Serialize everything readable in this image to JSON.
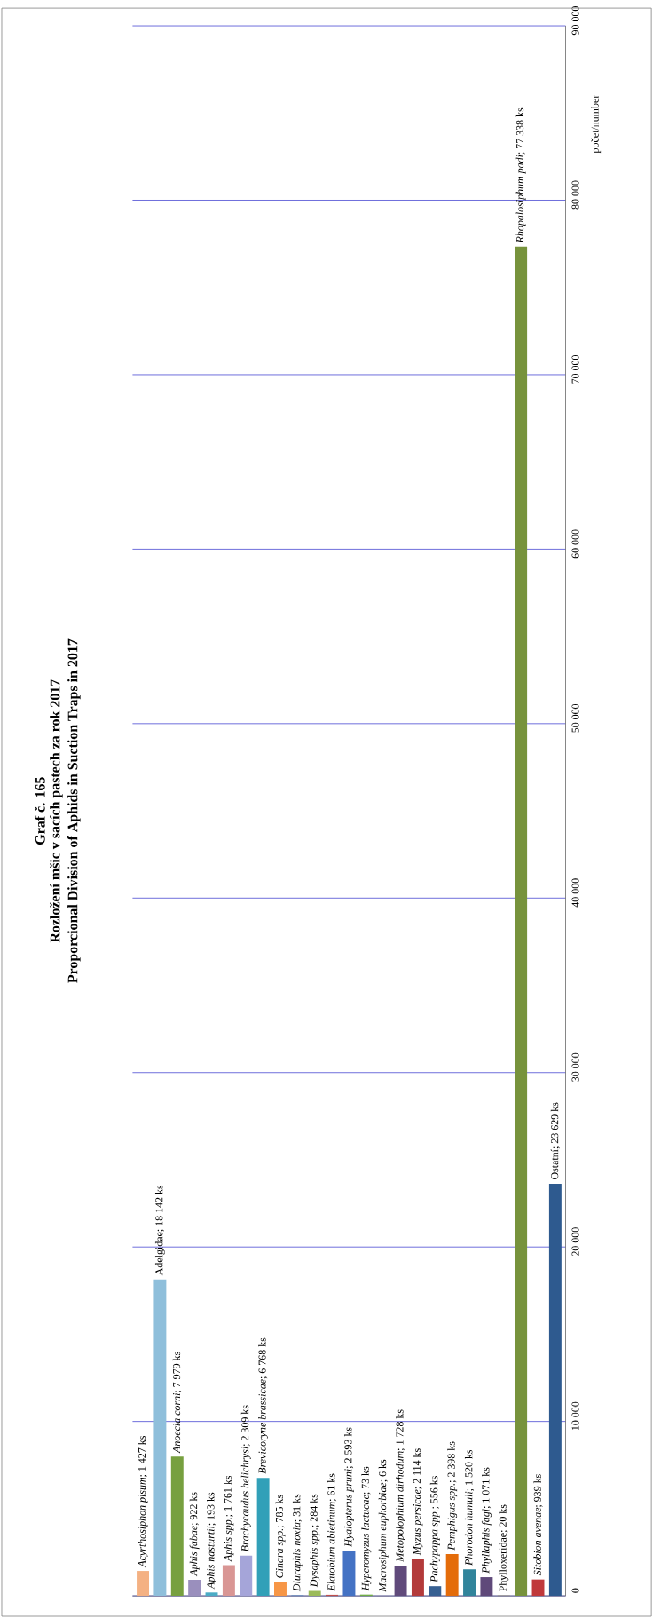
{
  "chart_data": {
    "type": "bar",
    "title": "Graf č. 165",
    "subtitle": "Rozložení mšic v sacích pastech za rok 2017",
    "annotations": [
      "Proporcional Division of Aphids in Suction Traps in 2017"
    ],
    "ylabel": "počet/number",
    "categories": [
      null,
      null,
      null,
      null,
      null,
      null,
      null,
      null,
      null,
      null,
      null,
      null,
      null,
      null,
      null,
      null,
      null,
      null,
      null,
      null,
      null,
      null,
      null,
      null,
      null
    ],
    "values": [
      1427,
      18142,
      7979,
      922,
      193,
      1761,
      2309,
      6768,
      785,
      31,
      284,
      61,
      2593,
      73,
      6,
      1728,
      2114,
      556,
      2398,
      1520,
      1071,
      20,
      77338,
      939,
      23629
    ],
    "colors": [
      "#f4b183",
      "#8fbfdb",
      "#77a03f",
      "#9a8fbd",
      "#4bacc6",
      "#d99694",
      "#a5a5d9",
      "#31a0b8",
      "#f79646",
      "#4f81bd",
      "#9bbb59",
      "#c0504d",
      "#4472c4",
      "#70ad47",
      "#7f6084",
      "#604a7b",
      "#b33a3a",
      "#376092",
      "#e46c0a",
      "#31849b",
      "#5f497a",
      "#948a54",
      "#77933c",
      "#c0393b",
      "#2e5a8f"
    ],
    "value_labels": [
      "*Acyrthosiphon pisum*; 1 427 ks",
      "Adelgidae; 18 142 ks",
      "*Anoecia corni*; 7 979 ks",
      "*Aphis fabae*; 922 ks",
      "*Aphis nasturtii*; 193 ks",
      "*Aphis spp.*; 1 761 ks",
      "*Brachycaudus helichrysi*; 2 309 ks",
      "*Brevicoryne brassicae*; 6 768 ks",
      "*Cinara spp.*; 785 ks",
      "*Diuraphis noxia*; 31 ks",
      "*Dysaphis spp.*; 284 ks",
      "*Elatobium abietinum*; 61 ks",
      "*Hyalopterus pruni*; 2 593 ks",
      "*Hyperomyzus lactucae*; 73 ks",
      "*Macrosiphum euphorbiae*; 6 ks",
      "*Metopolophium dirhodum*; 1 728 ks",
      "*Myzus persicae*; 2 114 ks",
      "*Pachypappa spp.*; 556 ks",
      "*Pemphigus spp.*; 2 398 ks",
      "*Phorodon humuli*; 1 520 ks",
      "*Phyllaphis fagi*; 1 071 ks",
      "Phylloxeridae; 20 ks",
      "*Rhopalosiphum padi*; 77 338 ks",
      "*Sitobion avenae*; 939 ks",
      "Ostatní; 23 629 ks"
    ],
    "ylim": [
      0,
      90000
    ],
    "yticks": [
      {
        "value": 0,
        "label": "0"
      },
      {
        "value": 10000,
        "label": "10 000"
      },
      {
        "value": 20000,
        "label": "20 000"
      },
      {
        "value": 30000,
        "label": "30 000"
      },
      {
        "value": 40000,
        "label": "40 000"
      },
      {
        "value": 50000,
        "label": "50 000"
      },
      {
        "value": 60000,
        "label": "60 000"
      },
      {
        "value": 70000,
        "label": "70 000"
      },
      {
        "value": 80000,
        "label": "80 000"
      },
      {
        "value": 90000,
        "label": "90 000"
      }
    ],
    "grid": "y",
    "tick_labels": "y"
  }
}
